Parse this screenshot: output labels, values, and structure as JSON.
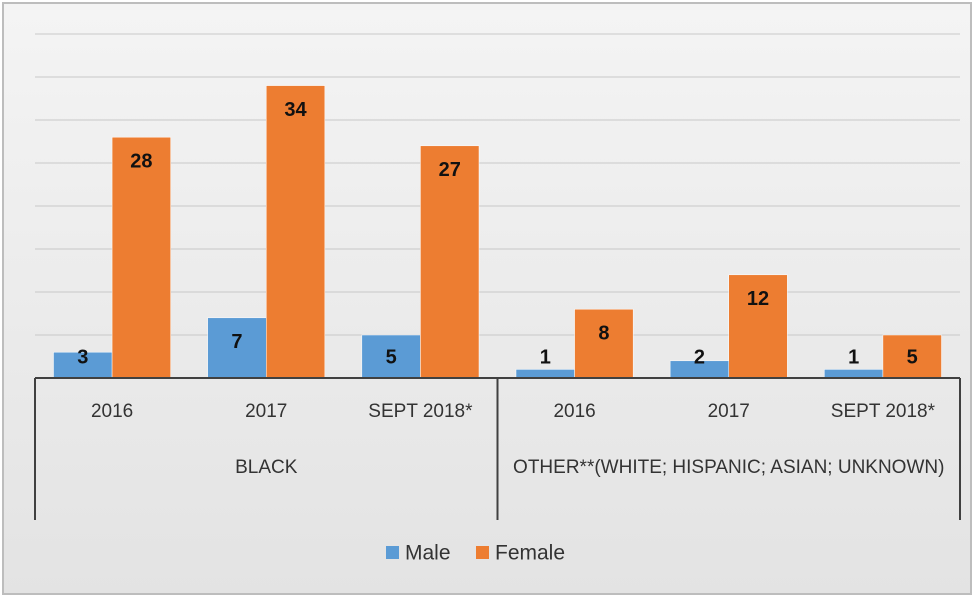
{
  "chart_data": {
    "type": "bar",
    "groups": [
      {
        "label": "BLACK",
        "categories": [
          "2016",
          "2017",
          "SEPT 2018*"
        ]
      },
      {
        "label": "OTHER**(WHITE; HISPANIC; ASIAN; UNKNOWN)",
        "categories": [
          "2016",
          "2017",
          "SEPT 2018*"
        ]
      }
    ],
    "series": [
      {
        "name": "Male",
        "color": "#5b9bd5",
        "values": [
          3,
          7,
          5,
          1,
          2,
          1
        ]
      },
      {
        "name": "Female",
        "color": "#ed7d31",
        "values": [
          28,
          34,
          27,
          8,
          12,
          5
        ]
      }
    ],
    "ylim": [
      0,
      40
    ],
    "yticks": [
      0,
      5,
      10,
      15,
      20,
      25,
      30,
      35,
      40
    ],
    "grid": true,
    "legend": "bottom"
  }
}
